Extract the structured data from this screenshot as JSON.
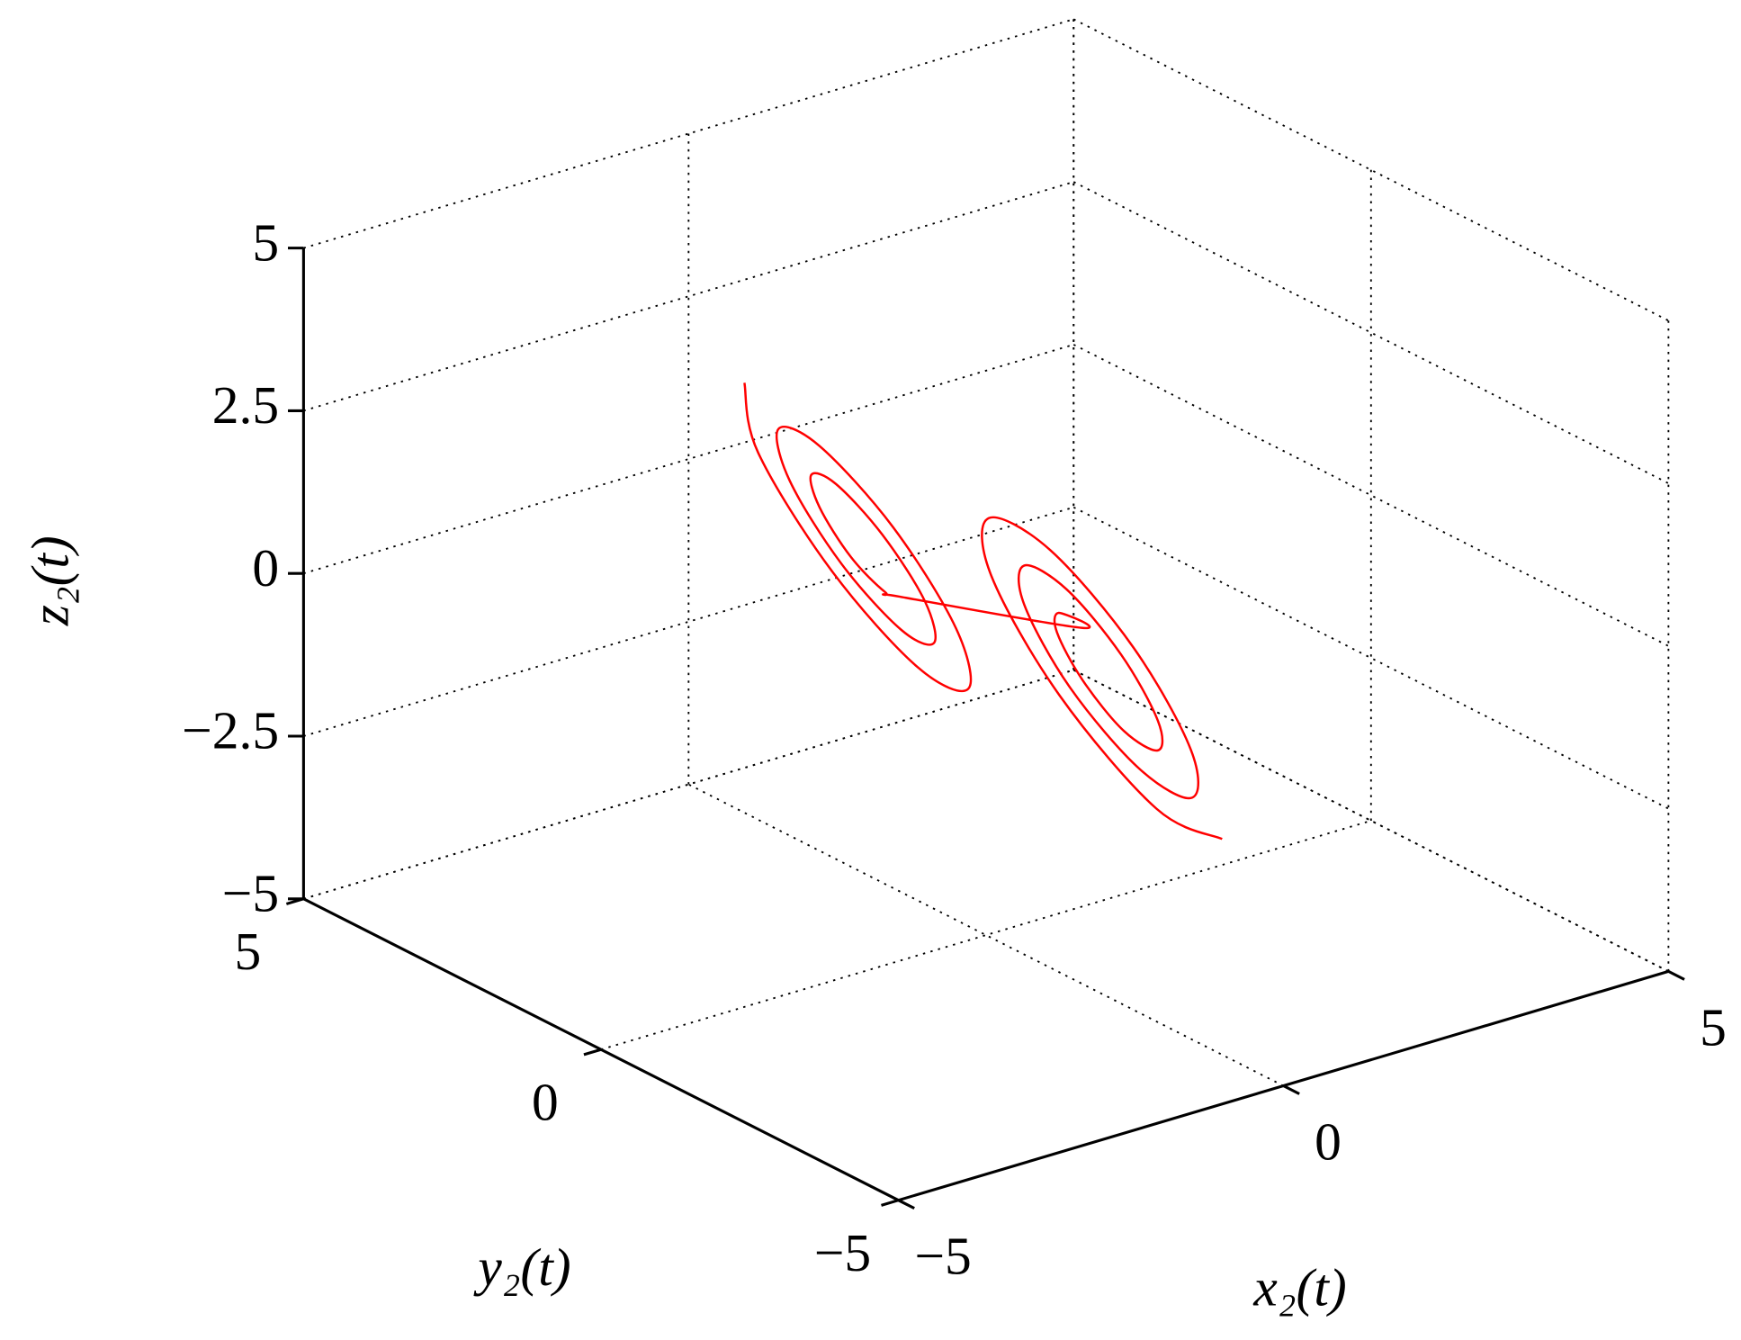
{
  "chart_data": {
    "type": "line3d",
    "x_label": "x₂(t)",
    "y_label": "y₂(t)",
    "z_label": "z₂(t)",
    "color": "#ff0000",
    "grid": true,
    "xlim": [
      -5,
      5
    ],
    "ylim": [
      -5,
      5
    ],
    "zlim": [
      -5,
      5
    ],
    "xticks": [
      {
        "value": -5,
        "label": "−5"
      },
      0,
      5
    ],
    "yticks": [
      {
        "value": -5,
        "label": "−5"
      },
      0,
      5
    ],
    "zticks": [
      {
        "value": -5,
        "label": "−5"
      },
      {
        "value": -2.5,
        "label": "−2.5"
      },
      0,
      2.5,
      5
    ],
    "x": [
      -1.77,
      -1.67,
      -1.13,
      -0.5,
      -0.13,
      -0.22,
      -0.68,
      -1.22,
      -1.52,
      -1.44,
      -1.06,
      -0.62,
      -0.38,
      -0.45,
      -0.76,
      -1.1,
      -1.28,
      -1.22,
      -0.99,
      -0.74,
      -0.63,
      0.7,
      0.53,
      0.52,
      0.71,
      1.01,
      1.26,
      1.26,
      0.99,
      0.59,
      0.28,
      0.28,
      0.62,
      1.13,
      1.51,
      1.5,
      1.08,
      0.47,
      0.02,
      0.04,
      0.54,
      1.25,
      1.73
    ],
    "y": [
      1.77,
      1.67,
      1.13,
      0.5,
      0.13,
      0.22,
      0.68,
      1.22,
      1.52,
      1.44,
      1.06,
      0.62,
      0.38,
      0.45,
      0.76,
      1.1,
      1.28,
      1.22,
      0.99,
      0.74,
      0.63,
      -0.7,
      -0.53,
      -0.52,
      -0.71,
      -1.01,
      -1.26,
      -1.26,
      -0.99,
      -0.59,
      -0.28,
      -0.28,
      -0.62,
      -1.13,
      -1.51,
      -1.5,
      -1.08,
      -0.47,
      -0.02,
      -0.04,
      -0.54,
      -1.25,
      -1.73
    ],
    "z": [
      3.29,
      2.23,
      0.47,
      -0.94,
      -1.23,
      -0.31,
      1.19,
      2.38,
      2.61,
      1.83,
      0.59,
      -0.38,
      -0.55,
      0.09,
      1.07,
      1.81,
      1.93,
      1.44,
      0.7,
      0.19,
      0.13,
      -0.2,
      0.01,
      -0.29,
      -1.01,
      -1.75,
      -2.02,
      -1.57,
      -0.58,
      0.38,
      0.71,
      0.11,
      -1.14,
      -2.33,
      -2.72,
      -1.98,
      -0.46,
      0.97,
      1.41,
      0.52,
      -1.26,
      -2.92,
      -3.33
    ]
  }
}
